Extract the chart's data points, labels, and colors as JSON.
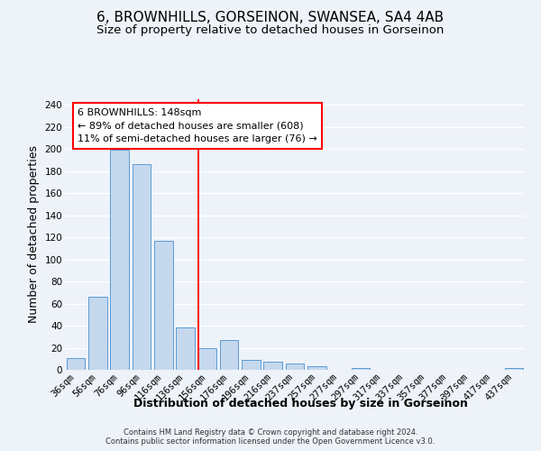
{
  "title": "6, BROWNHILLS, GORSEINON, SWANSEA, SA4 4AB",
  "subtitle": "Size of property relative to detached houses in Gorseinon",
  "xlabel": "Distribution of detached houses by size in Gorseinon",
  "ylabel": "Number of detached properties",
  "bar_labels": [
    "36sqm",
    "56sqm",
    "76sqm",
    "96sqm",
    "116sqm",
    "136sqm",
    "156sqm",
    "176sqm",
    "196sqm",
    "216sqm",
    "237sqm",
    "257sqm",
    "277sqm",
    "297sqm",
    "317sqm",
    "337sqm",
    "357sqm",
    "377sqm",
    "397sqm",
    "417sqm",
    "437sqm"
  ],
  "bar_values": [
    11,
    66,
    199,
    186,
    117,
    38,
    20,
    27,
    9,
    7,
    6,
    3,
    0,
    2,
    0,
    0,
    0,
    0,
    0,
    0,
    2
  ],
  "bar_color": "#c5d8ed",
  "bar_edge_color": "#5b9bd5",
  "ylim": [
    0,
    245
  ],
  "yticks": [
    0,
    20,
    40,
    60,
    80,
    100,
    120,
    140,
    160,
    180,
    200,
    220,
    240
  ],
  "property_label": "6 BROWNHILLS: 148sqm",
  "annotation_line1": "← 89% of detached houses are smaller (608)",
  "annotation_line2": "11% of semi-detached houses are larger (76) →",
  "title_fontsize": 11,
  "subtitle_fontsize": 9.5,
  "axis_label_fontsize": 9,
  "tick_fontsize": 7.5,
  "annotation_fontsize": 8,
  "footer_text": "Contains HM Land Registry data © Crown copyright and database right 2024.\nContains public sector information licensed under the Open Government Licence v3.0.",
  "background_color": "#eef2f9",
  "grid_color": "#ffffff",
  "footer_fontsize": 6
}
